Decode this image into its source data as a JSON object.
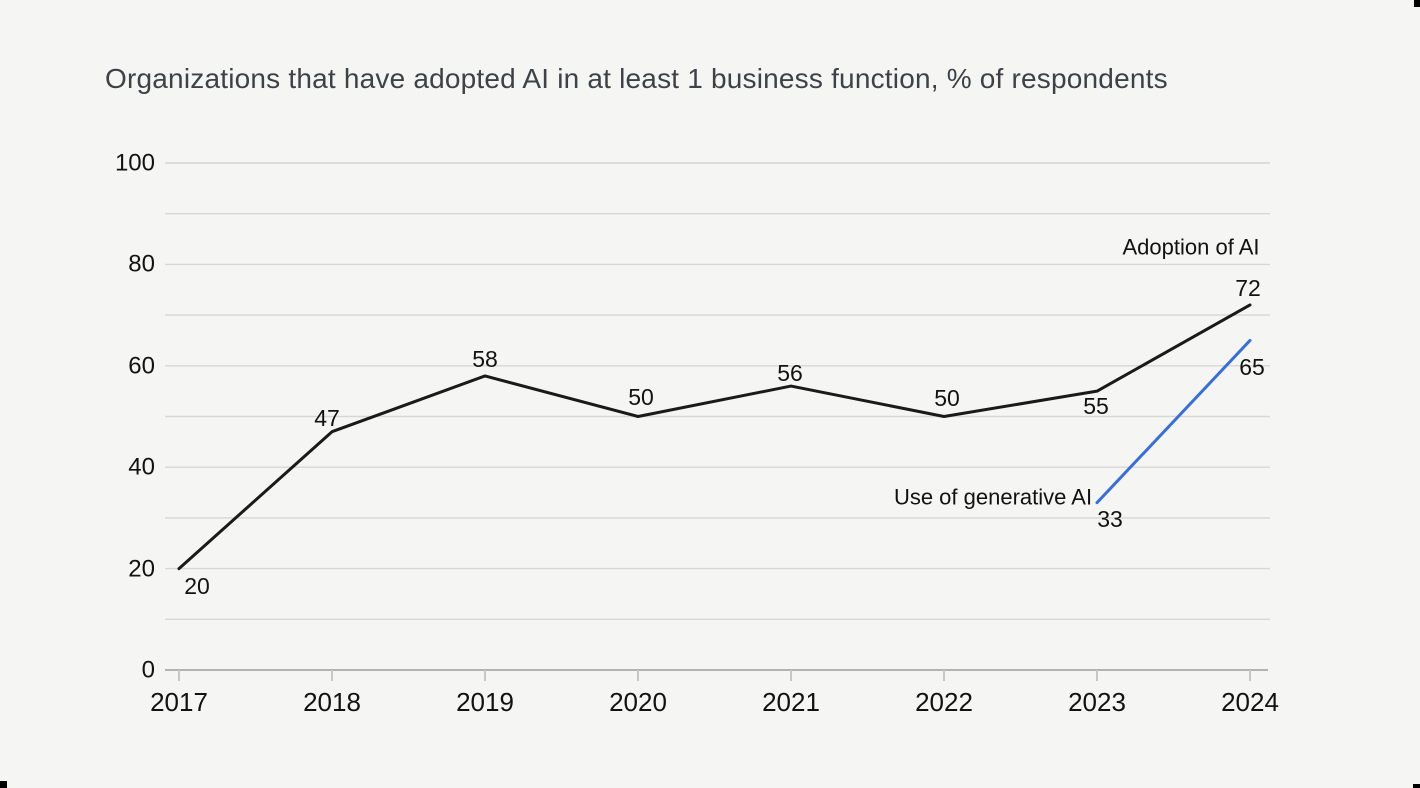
{
  "page": {
    "background": "#f5f5f4",
    "title": "Organizations that have adopted AI in at least 1 business function, % of respondents",
    "title_color": "#3e4247"
  },
  "chart_data": {
    "type": "line",
    "title": "Organizations that have adopted AI in at least 1 business function, % of respondents",
    "categories": [
      "2017",
      "2018",
      "2019",
      "2020",
      "2021",
      "2022",
      "2023",
      "2024"
    ],
    "xlabel": "",
    "ylabel": "",
    "ylim": [
      0,
      100
    ],
    "y_tick_labels": [
      0,
      20,
      40,
      60,
      80,
      100
    ],
    "grid": true,
    "grid_step": 10,
    "legend_position": "inline-end-labels",
    "colors": {
      "gridline": "#d7d7d5",
      "axis_line": "#b2b2b0",
      "tick": "#c7c7c5",
      "label_text": "#121212"
    },
    "series": [
      {
        "name": "Adoption of AI",
        "color": "#1a1a1a",
        "name_label": {
          "x": 1191,
          "y": 247
        },
        "points": [
          {
            "category": "2017",
            "value": 20,
            "dx": 18,
            "dy": 17
          },
          {
            "category": "2018",
            "value": 47,
            "dx": -5,
            "dy": -14
          },
          {
            "category": "2019",
            "value": 58,
            "dx": 0,
            "dy": -17
          },
          {
            "category": "2020",
            "value": 50,
            "dx": 3,
            "dy": -20
          },
          {
            "category": "2021",
            "value": 56,
            "dx": -1,
            "dy": -13
          },
          {
            "category": "2022",
            "value": 50,
            "dx": 3,
            "dy": -19
          },
          {
            "category": "2023",
            "value": 55,
            "dx": -1,
            "dy": 15
          },
          {
            "category": "2024",
            "value": 72,
            "dx": -2,
            "dy": -17
          }
        ]
      },
      {
        "name": "Use of generative AI",
        "color": "#3b6fd4",
        "name_label": {
          "x": 993,
          "y": 497
        },
        "points": [
          {
            "category": "2023",
            "value": 33,
            "dx": 13,
            "dy": 16
          },
          {
            "category": "2024",
            "value": 65,
            "dx": 2,
            "dy": 27
          }
        ]
      }
    ]
  }
}
